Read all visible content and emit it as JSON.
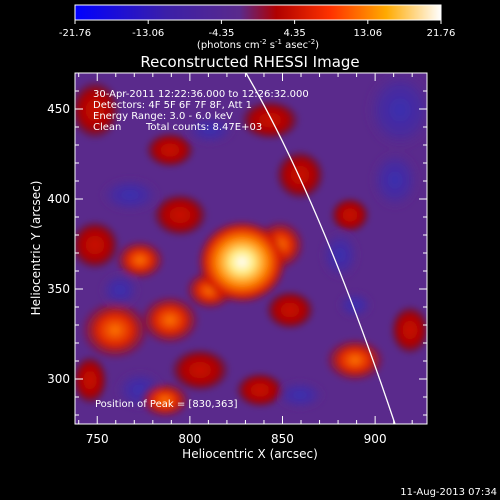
{
  "colorbar": {
    "ticks": [
      "-21.76",
      "-13.06",
      "-4.35",
      "4.35",
      "13.06",
      "21.76"
    ],
    "units_prefix": "(photons cm",
    "units_exp1": "-2",
    "units_mid": " s",
    "units_exp2": "-1",
    "units_mid2": " asec",
    "units_exp3": "-2",
    "units_suffix": ")",
    "colors": [
      "#0000ff",
      "#4a1f9e",
      "#6f2c8a",
      "#cc0000",
      "#ff6600",
      "#ffff99",
      "#ffffff"
    ]
  },
  "title": "Reconstructed RHESSI Image",
  "info": {
    "time_range": "30-Apr-2011 12:22:36.000 to 12:26:32.000",
    "detectors": "Detectors: 4F 5F 6F 7F 8F, Att 1",
    "energy": "Energy Range: 3.0 - 6.0 keV",
    "clean": "Clean",
    "total_counts": "Total counts: 8.47E+03",
    "peak": "Position of Peak = [830,363]"
  },
  "axes": {
    "xlabel": "Heliocentric X (arcsec)",
    "ylabel": "Heliocentric Y (arcsec)",
    "xticks": [
      "750",
      "800",
      "850",
      "900"
    ],
    "yticks": [
      "300",
      "350",
      "400",
      "450"
    ],
    "xlim": [
      738,
      928
    ],
    "ylim": [
      275,
      470
    ]
  },
  "footer": {
    "date": "11-Aug-2013 07:34"
  }
}
